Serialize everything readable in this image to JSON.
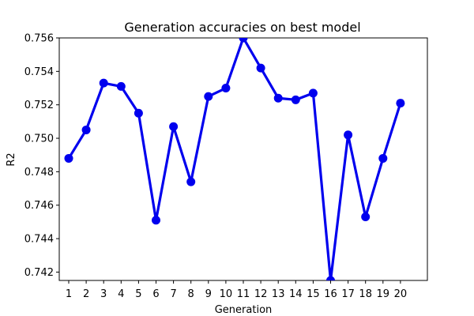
{
  "chart_data": {
    "type": "line",
    "title": "Generation accuracies on best model",
    "xlabel": "Generation",
    "ylabel": "R2",
    "categories": [
      "1",
      "2",
      "3",
      "4",
      "5",
      "6",
      "7",
      "8",
      "9",
      "10",
      "11",
      "12",
      "13",
      "14",
      "15",
      "16",
      "17",
      "18",
      "19",
      "20"
    ],
    "series": [
      {
        "color": "#0000ee",
        "values": [
          0.7488,
          0.7505,
          0.7533,
          0.7531,
          0.7515,
          0.7451,
          0.7507,
          0.7474,
          0.7525,
          0.753,
          0.756,
          0.7542,
          0.7524,
          0.7523,
          0.7527,
          0.7415,
          0.7502,
          0.7453,
          0.7488,
          0.7521
        ]
      }
    ],
    "ylim": [
      0.7415,
      0.756
    ],
    "yticks": [
      "0.742",
      "0.744",
      "0.746",
      "0.748",
      "0.750",
      "0.752",
      "0.754",
      "0.756"
    ],
    "grid": false,
    "legend": "none"
  }
}
